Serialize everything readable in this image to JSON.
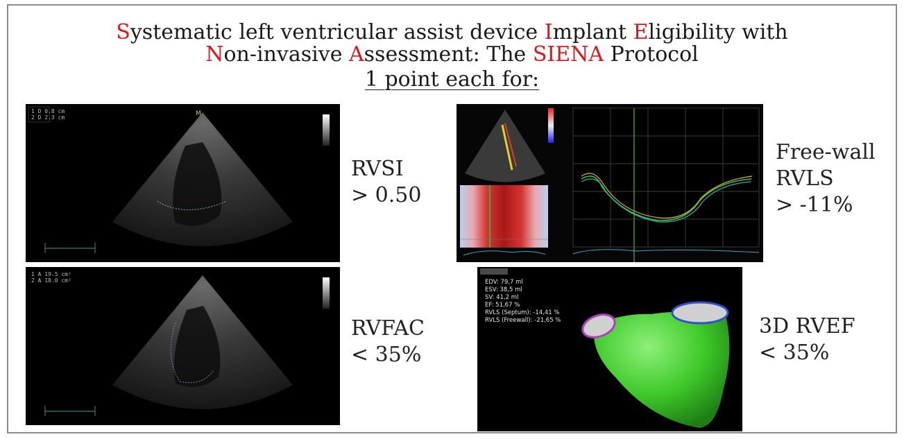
{
  "title": {
    "line1": [
      {
        "text": "S",
        "red": true
      },
      {
        "text": "ystematic left ventricular assist device ",
        "red": false
      },
      {
        "text": "I",
        "red": true
      },
      {
        "text": "mplant ",
        "red": false
      },
      {
        "text": "E",
        "red": true
      },
      {
        "text": "ligibility with",
        "red": false
      }
    ],
    "line2": [
      {
        "text": "N",
        "red": true
      },
      {
        "text": "on-invasive ",
        "red": false
      },
      {
        "text": "A",
        "red": true
      },
      {
        "text": "ssessment: The ",
        "red": false
      },
      {
        "text": "SIENA",
        "red": true
      },
      {
        "text": " Protocol",
        "red": false
      }
    ],
    "line3": "1 point each for:"
  },
  "criteria": {
    "rvsi": {
      "name": "RVSI",
      "threshold": "> 0.50"
    },
    "rvls": {
      "name1": "Free-wall",
      "name2": "RVLS",
      "threshold": "> -11%"
    },
    "rvfac": {
      "name": "RVFAC",
      "threshold": "< 35%"
    },
    "rvef": {
      "name": "3D RVEF",
      "threshold": "< 35%"
    }
  },
  "rvef_stats": [
    "EDV: 79,7 ml",
    "ESV: 38,5 ml",
    "SV: 41,2 ml",
    "EF: 51,67 %",
    "RVLS (Septum): -14,41 %",
    "RVLS (Freewall): -21,65 %"
  ],
  "colors": {
    "accent_red": "#e0161c",
    "text": "#1a1a1a",
    "frame": "#8a8a8a",
    "rv_model": "#3fc92a"
  }
}
